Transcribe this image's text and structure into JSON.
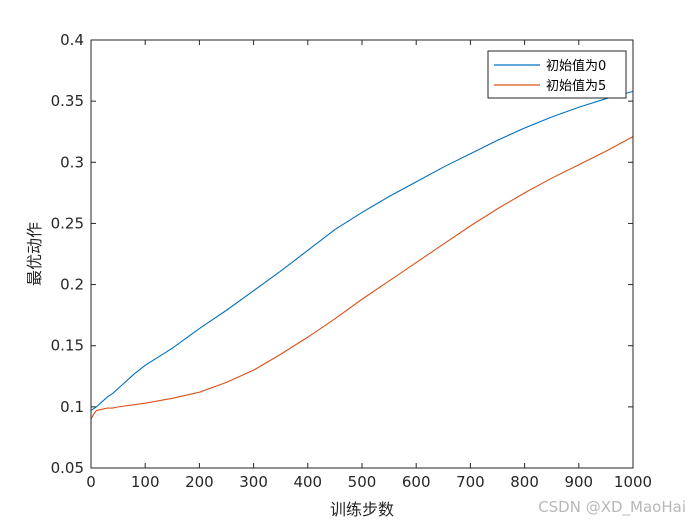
{
  "chart_data": {
    "type": "line",
    "title": "",
    "xlabel": "训练步数",
    "ylabel": "最优动作",
    "xlim": [
      0,
      1000
    ],
    "ylim": [
      0.05,
      0.4
    ],
    "xticks": [
      "0",
      "100",
      "200",
      "300",
      "400",
      "500",
      "600",
      "700",
      "800",
      "900",
      "1000"
    ],
    "yticks": [
      "0.05",
      "0.1",
      "0.15",
      "0.2",
      "0.25",
      "0.3",
      "0.35",
      "0.4"
    ],
    "grid": false,
    "legend_position": "top-right",
    "series": [
      {
        "name": "初始值为0",
        "color": "#0072BD",
        "x": [
          0,
          10,
          20,
          30,
          40,
          50,
          60,
          80,
          100,
          150,
          200,
          250,
          300,
          350,
          400,
          450,
          500,
          550,
          600,
          650,
          700,
          750,
          800,
          850,
          900,
          950,
          1000
        ],
        "y": [
          0.097,
          0.1,
          0.104,
          0.108,
          0.111,
          0.115,
          0.119,
          0.127,
          0.134,
          0.148,
          0.164,
          0.179,
          0.195,
          0.211,
          0.228,
          0.245,
          0.259,
          0.272,
          0.284,
          0.296,
          0.307,
          0.318,
          0.328,
          0.337,
          0.345,
          0.352,
          0.358
        ]
      },
      {
        "name": "初始值为5",
        "color": "#D95319",
        "x": [
          0,
          5,
          10,
          20,
          30,
          40,
          50,
          100,
          150,
          200,
          250,
          300,
          350,
          400,
          450,
          500,
          550,
          600,
          650,
          700,
          750,
          800,
          850,
          900,
          950,
          1000
        ],
        "y": [
          0.09,
          0.094,
          0.097,
          0.098,
          0.099,
          0.099,
          0.1,
          0.103,
          0.107,
          0.112,
          0.12,
          0.13,
          0.143,
          0.157,
          0.172,
          0.188,
          0.203,
          0.218,
          0.233,
          0.248,
          0.262,
          0.275,
          0.287,
          0.298,
          0.309,
          0.321
        ]
      }
    ]
  },
  "watermark": "CSDN @XD_MaoHai"
}
